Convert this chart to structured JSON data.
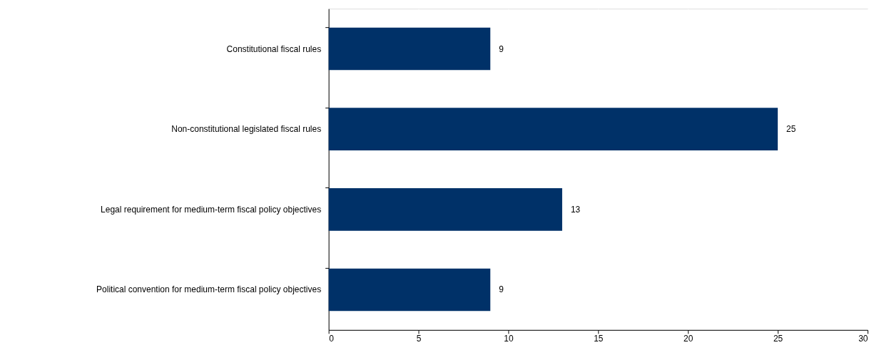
{
  "chart_data": {
    "type": "bar",
    "orientation": "horizontal",
    "categories": [
      "Constitutional fiscal rules",
      "Non-constitutional legislated fiscal rules",
      "Legal requirement for medium-term fiscal policy objectives",
      "Political convention for medium-term fiscal policy objectives"
    ],
    "values": [
      9,
      25,
      13,
      9
    ],
    "color": "#003168",
    "xlim": [
      0,
      30
    ],
    "xticks": [
      0,
      5,
      10,
      15,
      20,
      25,
      30
    ],
    "grid": "x",
    "data_labels": true
  }
}
